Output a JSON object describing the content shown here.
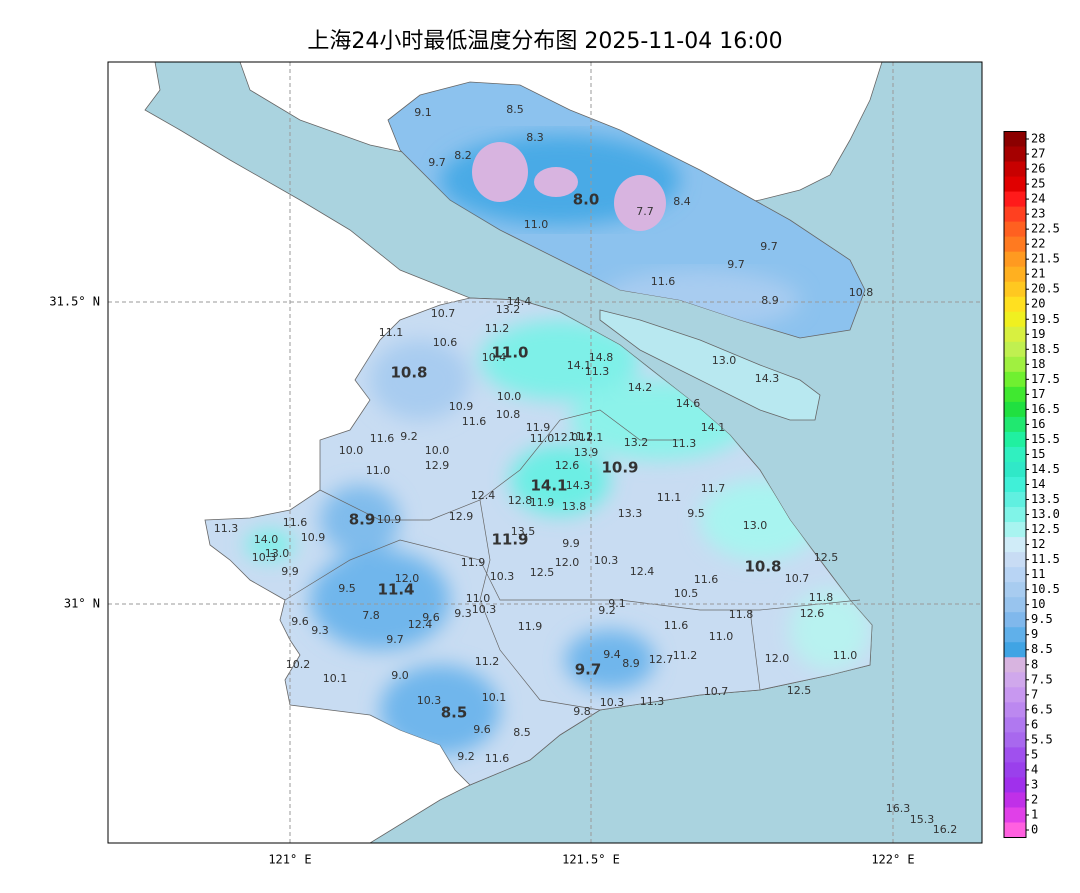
{
  "title": "上海24小时最低温度分布图 2025-11-04 16:00",
  "lat_labels": [
    "31.5° N",
    "31° N"
  ],
  "lon_labels": [
    "121° E",
    "121.5° E",
    "122° E"
  ],
  "colorbar": {
    "ticks": [
      "28",
      "27",
      "26",
      "25",
      "24",
      "23",
      "22.5",
      "22",
      "21.5",
      "21",
      "20.5",
      "20",
      "19.5",
      "19",
      "18.5",
      "18",
      "17.5",
      "17",
      "16.5",
      "16",
      "15.5",
      "15",
      "14.5",
      "14",
      "13.5",
      "13.0",
      "12.5",
      "12",
      "11.5",
      "11",
      "10.5",
      "10",
      "9.5",
      "9",
      "8.5",
      "8",
      "7.5",
      "7",
      "6.5",
      "6",
      "5.5",
      "5",
      "4",
      "3",
      "2",
      "1",
      "0"
    ],
    "colors": [
      "#8b0000",
      "#a50000",
      "#c80000",
      "#e00000",
      "#ff1a1a",
      "#ff4020",
      "#ff6020",
      "#ff7a20",
      "#ff9a20",
      "#ffb020",
      "#ffc820",
      "#ffe020",
      "#f0f020",
      "#d8f040",
      "#c0f050",
      "#a0f040",
      "#70f030",
      "#40e830",
      "#20e040",
      "#20e870",
      "#20f0a0",
      "#30f0c0",
      "#30e8c8",
      "#40f0d8",
      "#60f0e0",
      "#80f4e8",
      "#a8f4f0",
      "#d0ecf8",
      "#c8dcf4",
      "#b8d4f4",
      "#a8ccf0",
      "#98c4ee",
      "#80b8ec",
      "#60b0ea",
      "#40a4e4",
      "#d8b4e0",
      "#d0a8ec",
      "#c898f0",
      "#bc88f0",
      "#b078f0",
      "#a868ee",
      "#a050ee",
      "#9a40ec",
      "#a030ec",
      "#c030e8",
      "#e040e8",
      "#ff60e0"
    ]
  },
  "stations": [
    "9.1",
    "8.5",
    "8.3",
    "8.2",
    "9.7",
    "8.0",
    "7.7",
    "8.4",
    "11.0",
    "9.7",
    "9.7",
    "11.6",
    "8.9",
    "10.8",
    "13.0",
    "14.3",
    "14.4",
    "13.2",
    "10.7",
    "11.1",
    "11.2",
    "10.6",
    "11.0",
    "10.4",
    "14.8",
    "14.1",
    "11.3",
    "10.8",
    "14.2",
    "10.0",
    "10.9",
    "14.6",
    "10.8",
    "11.6",
    "14.1",
    "11.9",
    "9.2",
    "11.6",
    "11.0",
    "12.0",
    "11.2",
    "11.1",
    "13.2",
    "11.3",
    "10.0",
    "10.0",
    "13.9",
    "12.9",
    "12.6",
    "10.9",
    "11.0",
    "14.1",
    "14.3",
    "11.7",
    "12.4",
    "11.1",
    "12.8",
    "11.9",
    "13.8",
    "9.5",
    "13.3",
    "12.9",
    "8.9",
    "10.9",
    "11.6",
    "11.3",
    "13.0",
    "10.9",
    "14.0",
    "13.5",
    "11.9",
    "9.9",
    "13.0",
    "10.3",
    "12.5",
    "10.3",
    "12.0",
    "11.9",
    "9.9",
    "12.5",
    "12.4",
    "10.8",
    "10.3",
    "12.0",
    "11.6",
    "10.7",
    "11.4",
    "9.5",
    "10.5",
    "11.8",
    "11.0",
    "9.1",
    "10.3",
    "9.3",
    "9.2",
    "7.8",
    "9.6",
    "11.8",
    "12.6",
    "12.4",
    "9.6",
    "9.3",
    "11.9",
    "11.6",
    "9.7",
    "11.0",
    "9.4",
    "11.2",
    "12.7",
    "8.9",
    "11.2",
    "12.0",
    "11.0",
    "10.2",
    "9.7",
    "9.0",
    "10.1",
    "12.5",
    "10.7",
    "10.1",
    "10.3",
    "10.3",
    "11.3",
    "8.5",
    "9.8",
    "9.6",
    "8.5",
    "9.2",
    "11.6",
    "16.3",
    "15.3",
    "16.2"
  ]
}
